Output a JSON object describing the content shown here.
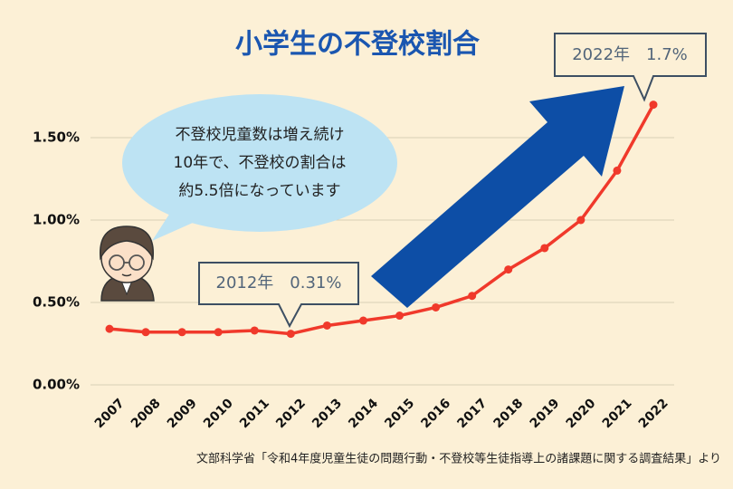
{
  "chart_data": {
    "type": "line",
    "title": "小学生の不登校割合",
    "categories": [
      "2007",
      "2008",
      "2009",
      "2010",
      "2011",
      "2012",
      "2013",
      "2014",
      "2015",
      "2016",
      "2017",
      "2018",
      "2019",
      "2020",
      "2021",
      "2022"
    ],
    "series": [
      {
        "name": "小学生の不登校割合",
        "color": "#f0392b",
        "values": [
          0.34,
          0.32,
          0.32,
          0.32,
          0.33,
          0.31,
          0.36,
          0.39,
          0.42,
          0.47,
          0.54,
          0.7,
          0.83,
          1.0,
          1.3,
          1.7
        ]
      }
    ],
    "ylim": [
      0,
      1.8
    ],
    "yticks": [
      {
        "value": 0,
        "label": "0.00%"
      },
      {
        "value": 0.5,
        "label": "0.50%"
      },
      {
        "value": 1,
        "label": "1.00%"
      },
      {
        "value": 1.5,
        "label": "1.50%"
      }
    ],
    "grid": true,
    "annotations": {
      "bubble": [
        "不登校児童数は増え続け",
        "10年で、不登校の割合は",
        "約5.5倍になっています"
      ],
      "callout_2012": "2012年　0.31%",
      "callout_2022": "2022年　1.7%",
      "source": "文部科学省「令和4年度児童生徒の問題行動・不登校等生徒指導上の諸課題に関する調査結果」より"
    }
  }
}
